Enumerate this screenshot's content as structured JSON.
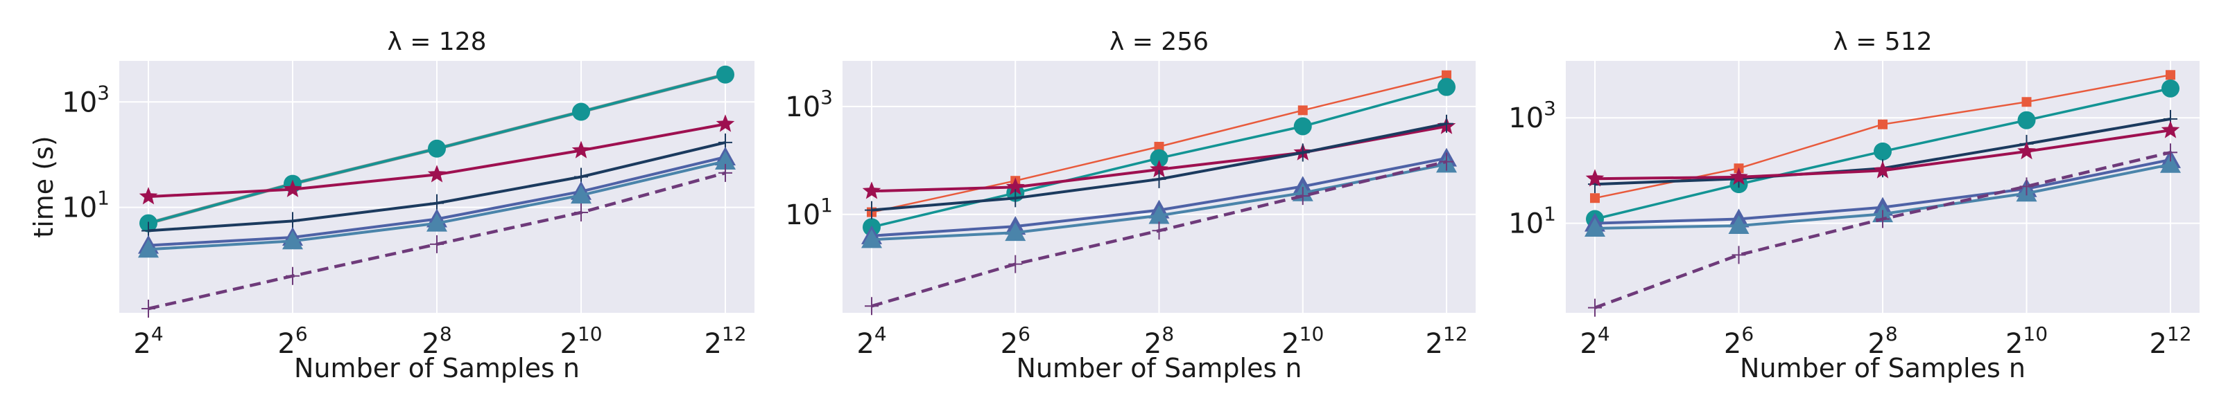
{
  "chart_data": [
    {
      "type": "line",
      "title": "λ = 128",
      "xlabel": "Number of Samples n",
      "ylabel": "time (s)",
      "yscale": "log",
      "grid": true,
      "x_tick_labels": [
        {
          "base": "2",
          "exp": "4"
        },
        {
          "base": "2",
          "exp": "6"
        },
        {
          "base": "2",
          "exp": "8"
        },
        {
          "base": "2",
          "exp": "10"
        },
        {
          "base": "2",
          "exp": "12"
        }
      ],
      "y_tick_labels": [
        {
          "base": "10",
          "exp": "1",
          "value": 10
        },
        {
          "base": "10",
          "exp": "3",
          "value": 1000
        }
      ],
      "x": [
        16,
        64,
        256,
        1024,
        4096
      ],
      "series": [
        {
          "color": "#8c8c8c",
          "marker": "none",
          "values": [
            5,
            28,
            130,
            650,
            3300
          ],
          "dash": false,
          "width": 5
        },
        {
          "color": "#e85a3c",
          "marker": "square",
          "values": [
            5,
            28,
            130,
            650,
            3300
          ],
          "dash": false,
          "width": 2.5
        },
        {
          "color": "#139494",
          "marker": "circle",
          "values": [
            5,
            28,
            130,
            650,
            3300
          ],
          "dash": false,
          "width": 3.5
        },
        {
          "color": "#9e1050",
          "marker": "star",
          "values": [
            16,
            22,
            42,
            120,
            380
          ],
          "dash": false,
          "width": 4
        },
        {
          "color": "#1b3a5e",
          "marker": "plus",
          "values": [
            3.6,
            5.5,
            12,
            38,
            170
          ],
          "dash": false,
          "width": 4
        },
        {
          "color": "#4e62a6",
          "marker": "triangle",
          "values": [
            1.9,
            2.7,
            6,
            20,
            90
          ],
          "dash": false,
          "width": 4
        },
        {
          "color": "#4a84aa",
          "marker": "triangle",
          "values": [
            1.6,
            2.3,
            5,
            17,
            75
          ],
          "dash": false,
          "width": 4
        },
        {
          "color": "#6e3a7a",
          "marker": "plus",
          "values": [
            0.12,
            0.5,
            2,
            8,
            45
          ],
          "dash": true,
          "width": 4.5
        }
      ]
    },
    {
      "type": "line",
      "title": "λ = 256",
      "xlabel": "Number of Samples n",
      "ylabel": "",
      "yscale": "log",
      "grid": true,
      "x_tick_labels": [
        {
          "base": "2",
          "exp": "4"
        },
        {
          "base": "2",
          "exp": "6"
        },
        {
          "base": "2",
          "exp": "8"
        },
        {
          "base": "2",
          "exp": "10"
        },
        {
          "base": "2",
          "exp": "12"
        }
      ],
      "y_tick_labels": [
        {
          "base": "10",
          "exp": "1",
          "value": 10
        },
        {
          "base": "10",
          "exp": "3",
          "value": 1000
        }
      ],
      "x": [
        16,
        64,
        256,
        1024,
        4096
      ],
      "series": [
        {
          "color": "#e85a3c",
          "marker": "square",
          "values": [
            11,
            42,
            180,
            850,
            3800
          ],
          "dash": false,
          "width": 2.5
        },
        {
          "color": "#139494",
          "marker": "circle",
          "values": [
            5.8,
            25,
            110,
            430,
            2300
          ],
          "dash": false,
          "width": 3.5
        },
        {
          "color": "#9e1050",
          "marker": "star",
          "values": [
            27,
            32,
            68,
            140,
            430
          ],
          "dash": false,
          "width": 4
        },
        {
          "color": "#1b3a5e",
          "marker": "plus",
          "values": [
            12,
            20,
            45,
            140,
            480
          ],
          "dash": false,
          "width": 4
        },
        {
          "color": "#4e62a6",
          "marker": "triangle",
          "values": [
            4,
            6,
            12,
            33,
            110
          ],
          "dash": false,
          "width": 4
        },
        {
          "color": "#4a84aa",
          "marker": "triangle",
          "values": [
            3.4,
            4.6,
            9.5,
            25,
            85
          ],
          "dash": false,
          "width": 4
        },
        {
          "color": "#6e3a7a",
          "marker": "plus",
          "values": [
            0.2,
            1.2,
            5,
            22,
            95
          ],
          "dash": true,
          "width": 4.5
        }
      ]
    },
    {
      "type": "line",
      "title": "λ = 512",
      "xlabel": "Number of Samples n",
      "ylabel": "",
      "yscale": "log",
      "grid": true,
      "x_tick_labels": [
        {
          "base": "2",
          "exp": "4"
        },
        {
          "base": "2",
          "exp": "6"
        },
        {
          "base": "2",
          "exp": "8"
        },
        {
          "base": "2",
          "exp": "10"
        },
        {
          "base": "2",
          "exp": "12"
        }
      ],
      "y_tick_labels": [
        {
          "base": "10",
          "exp": "1",
          "value": 10
        },
        {
          "base": "10",
          "exp": "3",
          "value": 1000
        }
      ],
      "x": [
        16,
        64,
        256,
        1024,
        4096
      ],
      "series": [
        {
          "color": "#e85a3c",
          "marker": "square",
          "values": [
            30,
            110,
            750,
            2000,
            6500
          ],
          "dash": false,
          "width": 2.5
        },
        {
          "color": "#139494",
          "marker": "circle",
          "values": [
            12,
            55,
            230,
            900,
            3600
          ],
          "dash": false,
          "width": 3.5
        },
        {
          "color": "#1b3a5e",
          "marker": "plus",
          "values": [
            55,
            70,
            110,
            320,
            950
          ],
          "dash": false,
          "width": 4
        },
        {
          "color": "#9e1050",
          "marker": "star",
          "values": [
            70,
            75,
            100,
            230,
            580
          ],
          "dash": false,
          "width": 4
        },
        {
          "color": "#4e62a6",
          "marker": "triangle",
          "values": [
            10,
            12,
            20,
            45,
            160
          ],
          "dash": false,
          "width": 4
        },
        {
          "color": "#4a84aa",
          "marker": "triangle",
          "values": [
            8,
            9,
            15,
            37,
            130
          ],
          "dash": false,
          "width": 4
        },
        {
          "color": "#6e3a7a",
          "marker": "plus",
          "values": [
            0.25,
            2.5,
            12,
            50,
            220
          ],
          "dash": true,
          "width": 4.5
        }
      ]
    }
  ]
}
